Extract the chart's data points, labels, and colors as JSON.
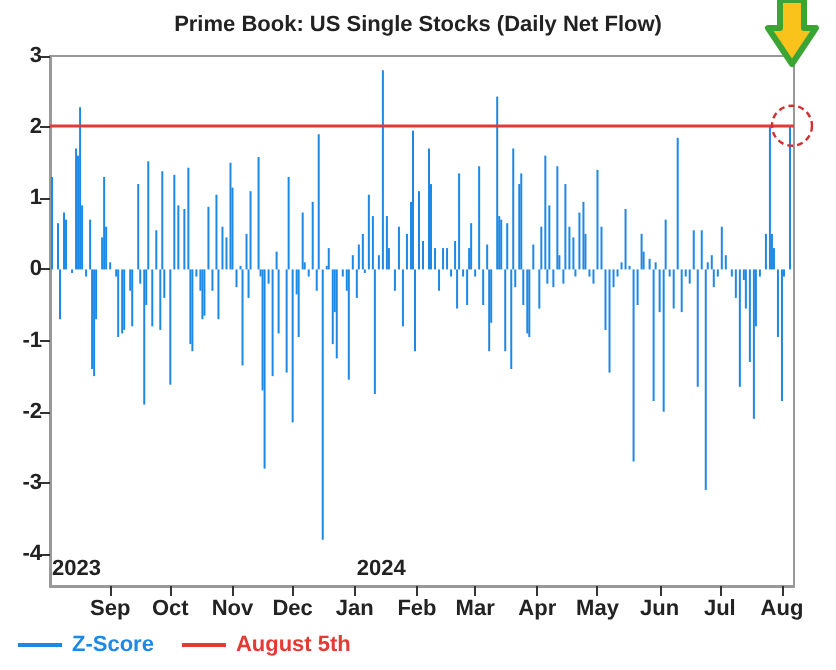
{
  "chart_data": {
    "type": "bar",
    "title": "Prime Book: US Single Stocks (Daily Net Flow)",
    "x": [
      "2023-08-03",
      "2023-08-06",
      "2023-08-07",
      "2023-08-09",
      "2023-08-10",
      "2023-08-13",
      "2023-08-15",
      "2023-08-16",
      "2023-08-17",
      "2023-08-18",
      "2023-08-20",
      "2023-08-22",
      "2023-08-23",
      "2023-08-24",
      "2023-08-25",
      "2023-08-28",
      "2023-08-29",
      "2023-08-30",
      "2023-09-01",
      "2023-09-04",
      "2023-09-05",
      "2023-09-07",
      "2023-09-08",
      "2023-09-11",
      "2023-09-12",
      "2023-09-15",
      "2023-09-16",
      "2023-09-18",
      "2023-09-19",
      "2023-09-20",
      "2023-09-22",
      "2023-09-24",
      "2023-09-26",
      "2023-09-27",
      "2023-09-28",
      "2023-10-01",
      "2023-10-03",
      "2023-10-05",
      "2023-10-08",
      "2023-10-10",
      "2023-10-11",
      "2023-10-12",
      "2023-10-14",
      "2023-10-16",
      "2023-10-17",
      "2023-10-18",
      "2023-10-20",
      "2023-10-22",
      "2023-10-24",
      "2023-10-25",
      "2023-10-27",
      "2023-10-29",
      "2023-10-31",
      "2023-11-01",
      "2023-11-03",
      "2023-11-05",
      "2023-11-06",
      "2023-11-08",
      "2023-11-09",
      "2023-11-10",
      "2023-11-14",
      "2023-11-15",
      "2023-11-16",
      "2023-11-17",
      "2023-11-19",
      "2023-11-21",
      "2023-11-23",
      "2023-11-24",
      "2023-11-28",
      "2023-11-29",
      "2023-12-01",
      "2023-12-03",
      "2023-12-04",
      "2023-12-06",
      "2023-12-07",
      "2023-12-09",
      "2023-12-11",
      "2023-12-13",
      "2023-12-14",
      "2023-12-16",
      "2023-12-18",
      "2023-12-19",
      "2023-12-21",
      "2023-12-22",
      "2023-12-23",
      "2023-12-26",
      "2023-12-28",
      "2023-12-29",
      "2023-12-31",
      "2024-01-02",
      "2024-01-03",
      "2024-01-05",
      "2024-01-06",
      "2024-01-08",
      "2024-01-10",
      "2024-01-11",
      "2024-01-13",
      "2024-01-15",
      "2024-01-17",
      "2024-01-18",
      "2024-01-21",
      "2024-01-23",
      "2024-01-25",
      "2024-01-27",
      "2024-01-29",
      "2024-01-30",
      "2024-01-31",
      "2024-02-02",
      "2024-02-04",
      "2024-02-07",
      "2024-02-08",
      "2024-02-10",
      "2024-02-12",
      "2024-02-14",
      "2024-02-16",
      "2024-02-18",
      "2024-02-20",
      "2024-02-21",
      "2024-02-22",
      "2024-02-24",
      "2024-02-26",
      "2024-02-27",
      "2024-02-28",
      "2024-03-01",
      "2024-03-03",
      "2024-03-05",
      "2024-03-07",
      "2024-03-08",
      "2024-03-09",
      "2024-03-12",
      "2024-03-13",
      "2024-03-14",
      "2024-03-16",
      "2024-03-17",
      "2024-03-19",
      "2024-03-20",
      "2024-03-21",
      "2024-03-23",
      "2024-03-24",
      "2024-03-25",
      "2024-03-27",
      "2024-03-28",
      "2024-03-30",
      "2024-04-02",
      "2024-04-03",
      "2024-04-05",
      "2024-04-06",
      "2024-04-07",
      "2024-04-09",
      "2024-04-11",
      "2024-04-12",
      "2024-04-14",
      "2024-04-15",
      "2024-04-17",
      "2024-04-19",
      "2024-04-20",
      "2024-04-22",
      "2024-04-24",
      "2024-04-25",
      "2024-04-27",
      "2024-04-29",
      "2024-05-01",
      "2024-05-03",
      "2024-05-05",
      "2024-05-07",
      "2024-05-09",
      "2024-05-11",
      "2024-05-13",
      "2024-05-15",
      "2024-05-17",
      "2024-05-19",
      "2024-05-21",
      "2024-05-23",
      "2024-05-24",
      "2024-05-27",
      "2024-05-29",
      "2024-05-30",
      "2024-06-01",
      "2024-06-03",
      "2024-06-04",
      "2024-06-06",
      "2024-06-08",
      "2024-06-10",
      "2024-06-12",
      "2024-06-14",
      "2024-06-16",
      "2024-06-18",
      "2024-06-20",
      "2024-06-22",
      "2024-06-24",
      "2024-06-25",
      "2024-06-27",
      "2024-06-28",
      "2024-06-30",
      "2024-07-02",
      "2024-07-04",
      "2024-07-07",
      "2024-07-09",
      "2024-07-11",
      "2024-07-13",
      "2024-07-14",
      "2024-07-16",
      "2024-07-18",
      "2024-07-19",
      "2024-07-21",
      "2024-07-24",
      "2024-07-26",
      "2024-07-27",
      "2024-07-28",
      "2024-07-30",
      "2024-08-01",
      "2024-08-02",
      "2024-08-05"
    ],
    "series": [
      {
        "name": "Z-Score",
        "color": "#1e88e5",
        "values": [
          1.3,
          0.65,
          -0.7,
          0.8,
          0.7,
          -0.05,
          1.7,
          1.6,
          2.28,
          0.9,
          -0.1,
          0.7,
          -1.4,
          -1.5,
          -0.7,
          0.45,
          1.3,
          0.6,
          0.1,
          -0.1,
          -0.95,
          -0.9,
          -0.85,
          -0.3,
          -0.8,
          1.2,
          -0.2,
          -1.9,
          -0.5,
          1.52,
          -0.8,
          0.55,
          -0.85,
          1.38,
          -0.4,
          -1.62,
          1.33,
          0.9,
          0.85,
          1.43,
          -1.05,
          -1.15,
          -0.1,
          -0.3,
          -0.7,
          -0.65,
          0.88,
          -0.3,
          1.05,
          -0.7,
          0.6,
          0.45,
          1.5,
          1.15,
          -0.25,
          0.05,
          -1.35,
          0.5,
          -0.4,
          1.1,
          1.58,
          -0.1,
          -1.7,
          -2.8,
          -0.2,
          -1.5,
          0.25,
          -0.9,
          -1.45,
          1.3,
          -2.15,
          -0.35,
          -0.95,
          0.8,
          0.1,
          -0.1,
          0.95,
          -0.3,
          1.9,
          -3.8,
          0.05,
          0.3,
          -1.05,
          -0.6,
          -1.25,
          -0.1,
          -0.3,
          -1.55,
          0.2,
          -0.4,
          0.35,
          0.5,
          -0.05,
          1.05,
          0.75,
          -1.75,
          0.2,
          2.8,
          0.75,
          0.3,
          -0.3,
          0.6,
          -0.8,
          0.5,
          0.95,
          1.95,
          -1.15,
          1.1,
          0.4,
          1.7,
          1.2,
          0.3,
          -0.3,
          0.3,
          0.3,
          -0.1,
          0.4,
          -0.55,
          1.35,
          -0.1,
          -0.5,
          0.3,
          0.65,
          -0.1,
          1.45,
          -0.5,
          0.35,
          -1.15,
          -0.75,
          2.43,
          0.75,
          0.7,
          -1.15,
          0.65,
          -1.4,
          1.7,
          -0.25,
          1.2,
          1.35,
          -0.5,
          -0.9,
          -0.95,
          0.35,
          -0.55,
          0.6,
          1.6,
          -0.2,
          0.9,
          -0.25,
          1.45,
          0.2,
          -0.2,
          1.2,
          0.6,
          0.45,
          -0.1,
          0.8,
          0.95,
          0.5,
          -0.1,
          -0.2,
          1.4,
          0.6,
          -0.85,
          -1.45,
          -0.25,
          -0.1,
          0.1,
          0.85,
          0.05,
          -2.7,
          -0.5,
          0.5,
          0.25,
          0.15,
          -1.85,
          0.1,
          -0.6,
          -2.0,
          0.7,
          -0.1,
          -0.55,
          1.85,
          -0.6,
          -0.1,
          -0.2,
          0.55,
          -1.65,
          0.55,
          -3.1,
          0.1,
          0.2,
          -0.25,
          -0.1,
          0.6,
          0.2,
          -0.1,
          -0.4,
          -1.65,
          -0.15,
          -0.55,
          -1.3,
          -2.1,
          -0.8,
          -0.1,
          0.5,
          2.0,
          0.5,
          0.3,
          -0.95,
          -1.85,
          -0.1,
          2.02
        ]
      }
    ],
    "xlim": [
      "2023-08-02",
      "2024-08-07"
    ],
    "xticks": [
      {
        "value": "2023-09-01",
        "label": "Sep"
      },
      {
        "value": "2023-10-01",
        "label": "Oct"
      },
      {
        "value": "2023-11-01",
        "label": "Nov"
      },
      {
        "value": "2023-12-01",
        "label": "Dec"
      },
      {
        "value": "2024-01-01",
        "label": "Jan"
      },
      {
        "value": "2024-02-01",
        "label": "Feb"
      },
      {
        "value": "2024-03-01",
        "label": "Mar"
      },
      {
        "value": "2024-04-01",
        "label": "Apr"
      },
      {
        "value": "2024-05-01",
        "label": "May"
      },
      {
        "value": "2024-06-01",
        "label": "Jun"
      },
      {
        "value": "2024-07-01",
        "label": "Jul"
      },
      {
        "value": "2024-08-01",
        "label": "Aug"
      }
    ],
    "ylim": [
      -4.45,
      3
    ],
    "yticks": [
      3,
      2,
      1,
      0,
      -1,
      -2,
      -3,
      -4
    ],
    "ref_lines": [
      {
        "axis": "y",
        "value": 2.02,
        "label": "August 5th",
        "color": "#e53935"
      }
    ],
    "annotations": [
      "2023",
      "2024"
    ],
    "grid": false,
    "legend": "bottom left"
  }
}
